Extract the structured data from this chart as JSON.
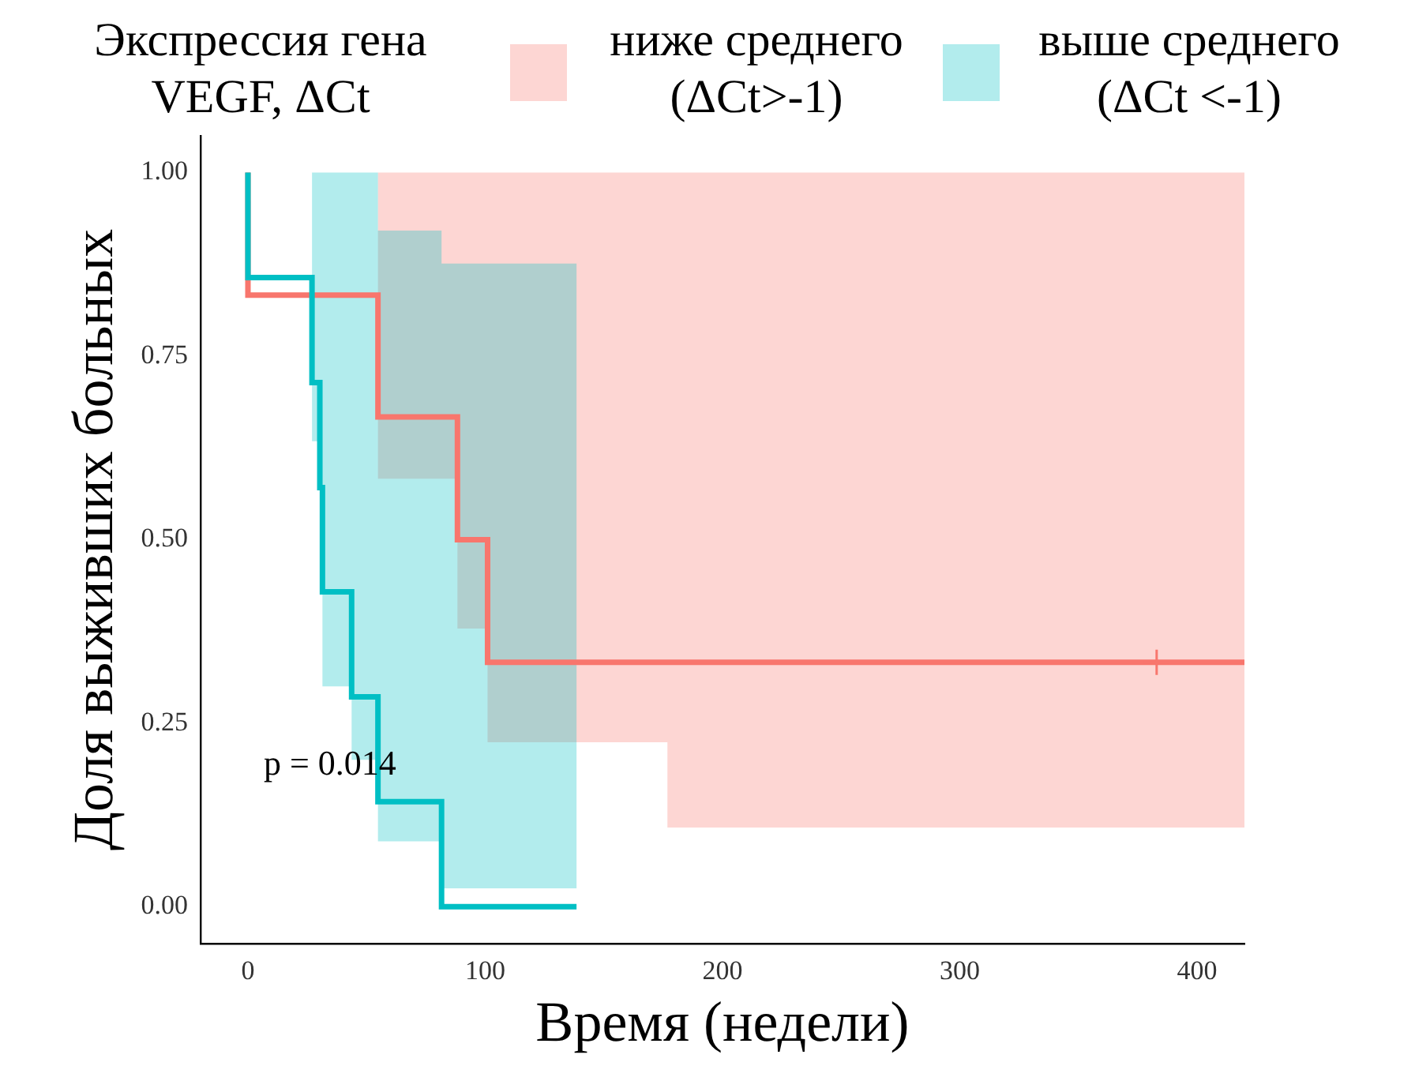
{
  "chart_data": {
    "type": "step",
    "legend_title": "Экспрессия гена VEGF, ΔCt",
    "xlabel": "Время (недели)",
    "ylabel": "Доля выживших больных",
    "annotations": [
      "p = 0.014"
    ],
    "series": [
      {
        "name": "ниже среднего (ΔCt>-1)",
        "color": "#f8766d",
        "x": [
          0,
          54.8,
          88.3,
          101,
          176.8,
          420
        ],
        "values": [
          1,
          0.833,
          0.667,
          0.5,
          0.333,
          0.333
        ],
        "lower": [
          null,
          0.583,
          0.379,
          0.224,
          0.108,
          0.108
        ],
        "upper": [
          null,
          1,
          1,
          1,
          1,
          1
        ]
      },
      {
        "name": "выше среднего (ΔCt <-1)",
        "color": "#00bfc4",
        "x": [
          0,
          27,
          30.3,
          31.4,
          43.7,
          54.8,
          81.6,
          138.5
        ],
        "values": [
          1,
          0.857,
          0.714,
          0.571,
          0.429,
          0.286,
          0.143,
          0
        ],
        "lower": [
          null,
          0.634,
          0.448,
          0.3,
          0.2,
          0.089,
          0.025,
          0.025
        ],
        "upper": [
          null,
          1,
          1,
          1,
          1,
          0.921,
          0.876,
          0.876
        ]
      },
      {
        "type": "scatter",
        "color": "#f8766d",
        "marker": "cross",
        "x": [
          383
        ],
        "values": [
          0.333
        ]
      }
    ],
    "xlim": [
      -20,
      420
    ],
    "xticks": [
      0,
      100,
      200,
      300,
      400
    ],
    "ylim": [
      -0.05,
      1.05
    ],
    "yticks": [
      {
        "value": 0,
        "label": "0.00"
      },
      {
        "value": 0.25,
        "label": "0.25"
      },
      {
        "value": 0.5,
        "label": "0.50"
      },
      {
        "value": 0.75,
        "label": "0.75"
      },
      {
        "value": 1,
        "label": "1.00"
      }
    ],
    "grid": false,
    "legend": "top",
    "marker": "none",
    "line_style": "solid"
  }
}
